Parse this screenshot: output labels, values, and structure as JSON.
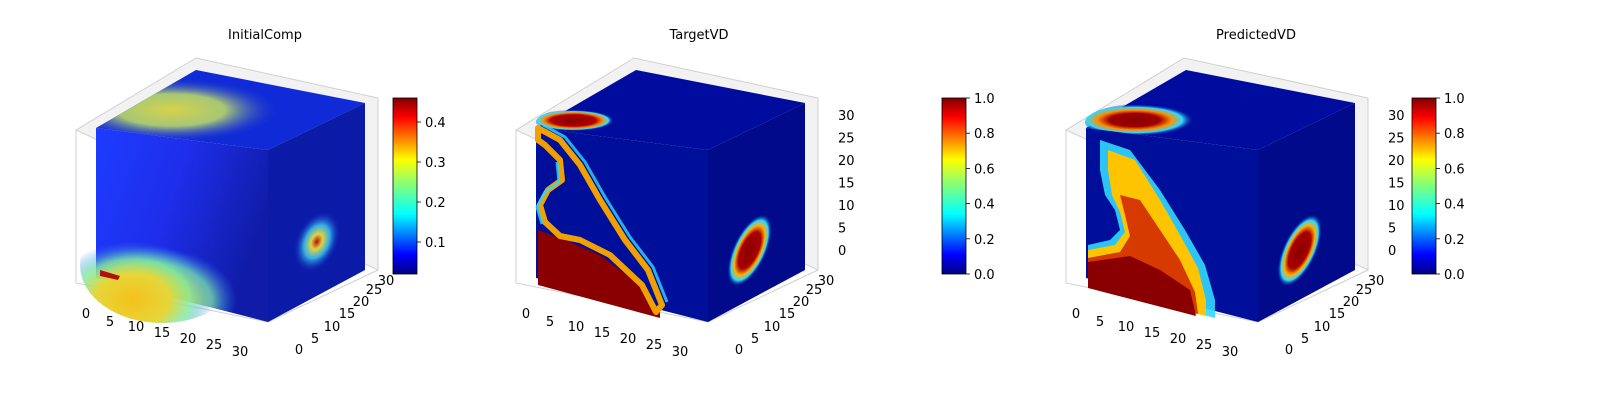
{
  "chart_data": [
    {
      "type": "voxel-3d",
      "title": "InitialComp",
      "colormap": "jet",
      "x_ticks": [
        "0",
        "5",
        "10",
        "15",
        "20",
        "25",
        "30"
      ],
      "y_ticks": [
        "0",
        "5",
        "10",
        "15",
        "20",
        "25",
        "30"
      ],
      "z_ticks": [],
      "colorbar": {
        "ticks": [
          "0.1",
          "0.2",
          "0.3",
          "0.4"
        ],
        "tick_values": [
          0.1,
          0.2,
          0.3,
          0.4
        ],
        "range": [
          0.02,
          0.46
        ]
      }
    },
    {
      "type": "voxel-3d",
      "title": "TargetVD",
      "colormap": "jet",
      "x_ticks": [
        "0",
        "5",
        "10",
        "15",
        "20",
        "25",
        "30"
      ],
      "y_ticks": [
        "0",
        "5",
        "10",
        "15",
        "20",
        "25",
        "30"
      ],
      "z_ticks": [
        "0",
        "5",
        "10",
        "15",
        "20",
        "25",
        "30"
      ],
      "colorbar": {
        "ticks": [
          "0.0",
          "0.2",
          "0.4",
          "0.6",
          "0.8",
          "1.0"
        ],
        "tick_values": [
          0,
          0.2,
          0.4,
          0.6,
          0.8,
          1.0
        ],
        "range": [
          0,
          1
        ]
      }
    },
    {
      "type": "voxel-3d",
      "title": "PredictedVD",
      "colormap": "jet",
      "x_ticks": [
        "0",
        "5",
        "10",
        "15",
        "20",
        "25",
        "30"
      ],
      "y_ticks": [
        "0",
        "5",
        "10",
        "15",
        "20",
        "25",
        "30"
      ],
      "z_ticks": [
        "0",
        "5",
        "10",
        "15",
        "20",
        "25",
        "30"
      ],
      "colorbar": {
        "ticks": [
          "0.0",
          "0.2",
          "0.4",
          "0.6",
          "0.8",
          "1.0"
        ],
        "tick_values": [
          0,
          0.2,
          0.4,
          0.6,
          0.8,
          1.0
        ],
        "range": [
          0,
          1
        ]
      }
    }
  ]
}
